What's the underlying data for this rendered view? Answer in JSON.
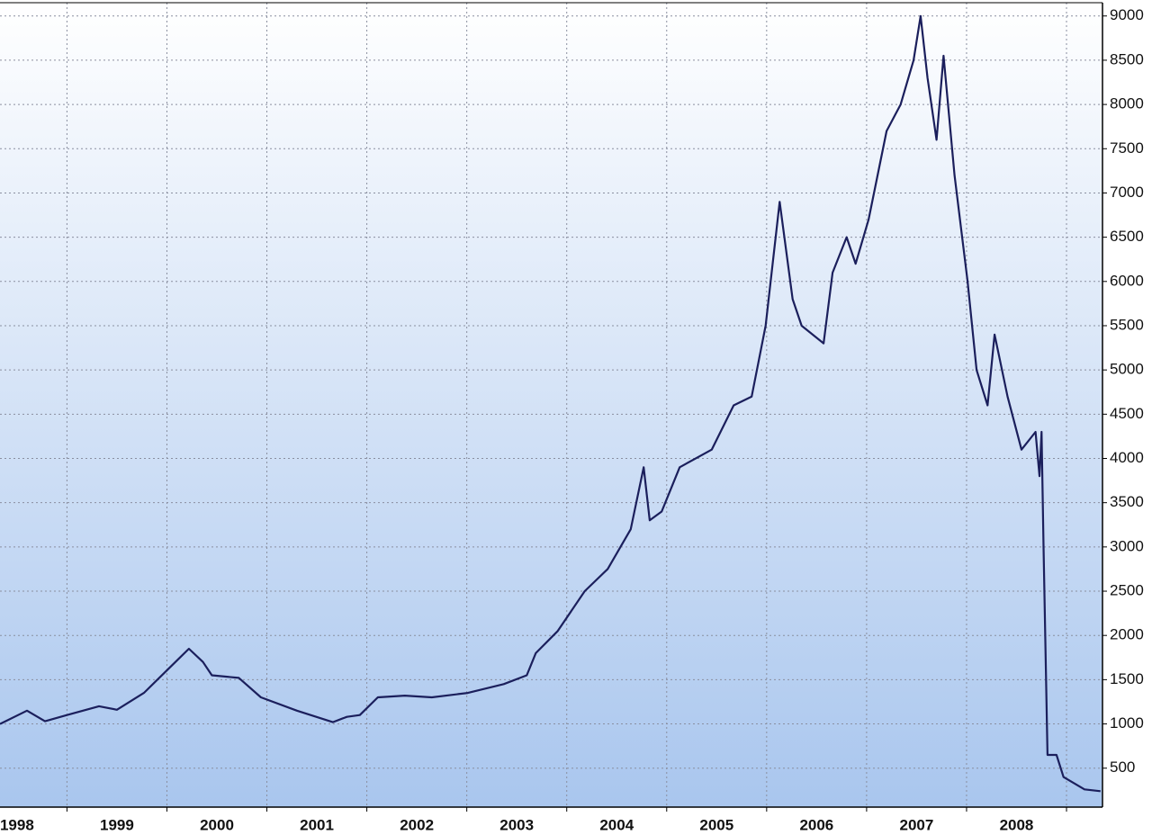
{
  "chart_data": {
    "type": "line",
    "x": [
      1998.33,
      1998.6,
      1998.78,
      1999.0,
      1999.32,
      1999.5,
      1999.77,
      2000.13,
      2000.22,
      2000.36,
      2000.45,
      2000.72,
      2000.94,
      2001.3,
      2001.66,
      2001.8,
      2001.93,
      2002.11,
      2002.38,
      2002.65,
      2003.01,
      2003.37,
      2003.6,
      2003.69,
      2003.91,
      2004.18,
      2004.41,
      2004.64,
      2004.77,
      2004.83,
      2004.95,
      2005.13,
      2005.45,
      2005.67,
      2005.85,
      2005.99,
      2006.06,
      2006.13,
      2006.26,
      2006.35,
      2006.57,
      2006.66,
      2006.8,
      2006.89,
      2007.02,
      2007.2,
      2007.34,
      2007.47,
      2007.54,
      2007.61,
      2007.7,
      2007.77,
      2007.88,
      2008.01,
      2008.1,
      2008.21,
      2008.28,
      2008.41,
      2008.55,
      2008.69,
      2008.73,
      2008.75,
      2008.77,
      2008.81,
      2008.9,
      2008.97,
      2009.18,
      2009.34
    ],
    "values": [
      1000,
      1150,
      1030,
      1100,
      1200,
      1160,
      1350,
      1750,
      1850,
      1700,
      1550,
      1520,
      1300,
      1150,
      1020,
      1080,
      1100,
      1300,
      1320,
      1300,
      1350,
      1450,
      1550,
      1800,
      2050,
      2500,
      2750,
      3200,
      3900,
      3300,
      3400,
      3900,
      4100,
      4600,
      4700,
      5500,
      6200,
      6900,
      5800,
      5500,
      5300,
      6100,
      6500,
      6200,
      6700,
      7700,
      8000,
      8500,
      9000,
      8300,
      7600,
      8550,
      7200,
      6000,
      5000,
      4600,
      5400,
      4700,
      4100,
      4300,
      3800,
      4300,
      3000,
      650,
      650,
      400,
      260,
      240
    ],
    "color": "#1b1f5c",
    "xlim": [
      1998.33,
      2009.36
    ],
    "xticks": [
      {
        "value": 1998.5,
        "label": "1998"
      },
      {
        "value": 1999.5,
        "label": "1999"
      },
      {
        "value": 2000.5,
        "label": "2000"
      },
      {
        "value": 2001.5,
        "label": "2001"
      },
      {
        "value": 2002.5,
        "label": "2002"
      },
      {
        "value": 2003.5,
        "label": "2003"
      },
      {
        "value": 2004.5,
        "label": "2004"
      },
      {
        "value": 2005.5,
        "label": "2005"
      },
      {
        "value": 2006.5,
        "label": "2006"
      },
      {
        "value": 2007.5,
        "label": "2007"
      },
      {
        "value": 2008.5,
        "label": "2008"
      }
    ],
    "x_minor_ticks": [
      1999,
      2000,
      2001,
      2002,
      2003,
      2004,
      2005,
      2006,
      2007,
      2008,
      2009
    ],
    "ylim": [
      60,
      9150
    ],
    "yticks": [
      500,
      1000,
      1500,
      2000,
      2500,
      3000,
      3500,
      4000,
      4500,
      5000,
      5500,
      6000,
      6500,
      7000,
      7500,
      8000,
      8500,
      9000
    ],
    "grid": true
  }
}
